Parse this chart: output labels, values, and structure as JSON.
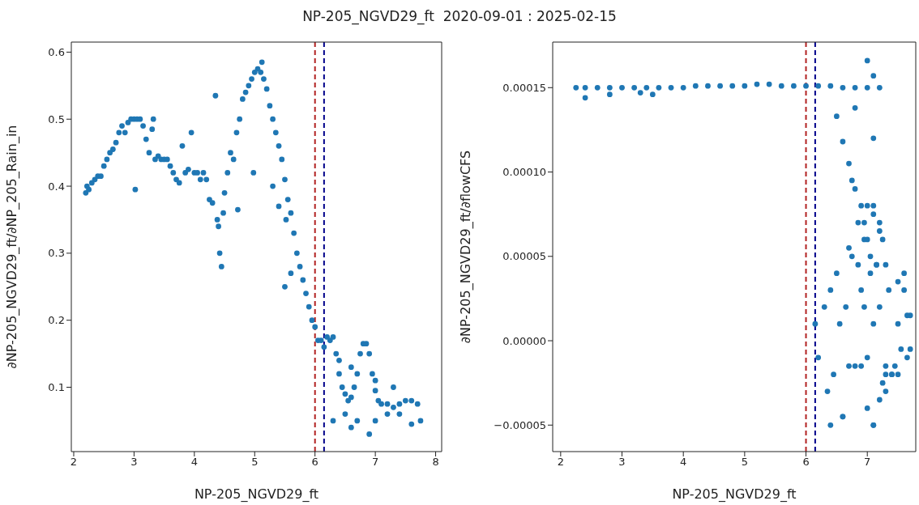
{
  "chart_data": [
    {
      "type": "scatter",
      "title": "NP-205_NGVD29_ft  2020-09-01 : 2025-02-15",
      "xlabel": "NP-205_NGVD29_ft",
      "ylabel": "∂NP-205_NGVD29_ft/∂NP_205_Rain_in",
      "marker": "circle",
      "xlim": [
        1.96,
        8.1
      ],
      "xticks": [
        2,
        3,
        4,
        5,
        6,
        7,
        8
      ],
      "ylim": [
        0.004,
        0.615
      ],
      "yticks": [
        0.1,
        0.2,
        0.3,
        0.4,
        0.5,
        0.6
      ],
      "grid": false,
      "legend": false,
      "ref_lines": [
        {
          "axis": "x",
          "value": 6.0,
          "color": "#b22222",
          "line_style": "dashed"
        },
        {
          "axis": "x",
          "value": 6.15,
          "color": "#00008b",
          "line_style": "dashed"
        }
      ],
      "color": "#1f77b4",
      "x": [
        2.2,
        2.22,
        2.25,
        2.3,
        2.35,
        2.4,
        2.45,
        2.5,
        2.55,
        2.6,
        2.65,
        2.7,
        2.75,
        2.8,
        2.85,
        2.9,
        2.95,
        3.0,
        3.05,
        3.1,
        3.02,
        3.15,
        3.2,
        3.25,
        3.3,
        3.32,
        3.35,
        3.4,
        3.45,
        3.5,
        3.55,
        3.6,
        3.65,
        3.7,
        3.75,
        3.8,
        3.85,
        3.9,
        3.95,
        4.0,
        4.05,
        4.1,
        4.15,
        4.2,
        4.25,
        4.3,
        4.35,
        4.38,
        4.4,
        4.42,
        4.45,
        4.48,
        4.5,
        4.55,
        4.6,
        4.65,
        4.7,
        4.72,
        4.75,
        4.8,
        4.85,
        4.9,
        4.95,
        4.98,
        5.0,
        5.05,
        5.1,
        5.12,
        5.15,
        5.2,
        5.25,
        5.3,
        5.35,
        5.4,
        5.45,
        5.5,
        5.52,
        5.55,
        5.6,
        5.65,
        5.7,
        5.75,
        5.8,
        5.85,
        5.9,
        5.95,
        6.0,
        6.05,
        6.1,
        6.15,
        6.2,
        6.25,
        6.3,
        6.35,
        6.4,
        6.45,
        6.5,
        6.55,
        6.6,
        6.65,
        6.7,
        6.75,
        6.8,
        6.85,
        6.9,
        6.95,
        7.0,
        7.05,
        7.1,
        7.2,
        7.3,
        7.4,
        7.5,
        7.6,
        7.7,
        7.75,
        6.3,
        6.5,
        6.6,
        6.7,
        6.9,
        7.0,
        7.2,
        7.4,
        7.6,
        6.4,
        6.6,
        7.0,
        7.3,
        5.6,
        5.5,
        5.4,
        5.3
      ],
      "values": [
        0.39,
        0.4,
        0.395,
        0.405,
        0.41,
        0.415,
        0.415,
        0.43,
        0.44,
        0.45,
        0.455,
        0.465,
        0.48,
        0.49,
        0.48,
        0.495,
        0.5,
        0.5,
        0.5,
        0.5,
        0.395,
        0.49,
        0.47,
        0.45,
        0.485,
        0.5,
        0.44,
        0.445,
        0.44,
        0.44,
        0.44,
        0.43,
        0.42,
        0.41,
        0.405,
        0.46,
        0.42,
        0.425,
        0.48,
        0.42,
        0.42,
        0.41,
        0.42,
        0.41,
        0.38,
        0.375,
        0.535,
        0.35,
        0.34,
        0.3,
        0.28,
        0.36,
        0.39,
        0.42,
        0.45,
        0.44,
        0.48,
        0.365,
        0.5,
        0.53,
        0.54,
        0.55,
        0.56,
        0.42,
        0.57,
        0.575,
        0.57,
        0.585,
        0.56,
        0.545,
        0.52,
        0.5,
        0.48,
        0.46,
        0.44,
        0.41,
        0.35,
        0.38,
        0.36,
        0.33,
        0.3,
        0.28,
        0.26,
        0.24,
        0.22,
        0.2,
        0.19,
        0.17,
        0.17,
        0.16,
        0.175,
        0.17,
        0.175,
        0.15,
        0.12,
        0.1,
        0.09,
        0.08,
        0.085,
        0.1,
        0.12,
        0.15,
        0.165,
        0.165,
        0.15,
        0.12,
        0.095,
        0.08,
        0.075,
        0.075,
        0.07,
        0.075,
        0.08,
        0.08,
        0.075,
        0.05,
        0.05,
        0.06,
        0.04,
        0.05,
        0.03,
        0.05,
        0.06,
        0.06,
        0.045,
        0.14,
        0.13,
        0.11,
        0.1,
        0.27,
        0.25,
        0.37,
        0.4
      ]
    },
    {
      "type": "scatter",
      "xlabel": "NP-205_NGVD29_ft",
      "ylabel": "∂NP-205_NGVD29_ft/∂flowCFS",
      "marker": "circle",
      "xlim": [
        1.87,
        7.79
      ],
      "xticks": [
        2,
        3,
        4,
        5,
        6,
        7
      ],
      "ylim": [
        -6.57e-05,
        0.000177
      ],
      "yticks": [
        {
          "value": -5e-05,
          "label": "−0.00005"
        },
        {
          "value": 0,
          "label": "0.00000"
        },
        {
          "value": 5e-05,
          "label": "0.00005"
        },
        {
          "value": 0.0001,
          "label": "0.00010"
        },
        {
          "value": 0.00015,
          "label": "0.00015"
        }
      ],
      "grid": false,
      "legend": false,
      "ref_lines": [
        {
          "axis": "x",
          "value": 6.0,
          "color": "#b22222",
          "line_style": "dashed"
        },
        {
          "axis": "x",
          "value": 6.15,
          "color": "#00008b",
          "line_style": "dashed"
        }
      ],
      "color": "#1f77b4",
      "x": [
        2.25,
        2.4,
        2.6,
        2.8,
        3.0,
        3.2,
        3.4,
        3.6,
        3.8,
        4.0,
        4.2,
        4.4,
        4.6,
        4.8,
        5.0,
        5.2,
        5.4,
        5.6,
        5.8,
        6.0,
        6.2,
        6.4,
        6.6,
        6.8,
        7.0,
        7.2,
        2.4,
        2.8,
        3.3,
        3.5,
        6.8,
        7.0,
        7.1,
        6.5,
        6.6,
        6.7,
        6.75,
        6.8,
        7.1,
        6.15,
        6.2,
        6.3,
        6.35,
        6.4,
        6.45,
        6.5,
        6.55,
        6.6,
        6.65,
        6.7,
        6.75,
        6.8,
        6.85,
        6.9,
        6.95,
        7.0,
        7.05,
        7.1,
        7.15,
        7.2,
        7.25,
        7.3,
        7.35,
        7.4,
        7.45,
        7.5,
        7.55,
        7.6,
        7.65,
        7.7,
        6.9,
        6.95,
        7.0,
        7.05,
        7.1,
        7.15,
        7.2,
        7.25,
        7.3,
        6.85,
        6.9,
        7.0,
        7.1,
        7.2,
        7.3,
        7.4,
        7.5,
        7.6,
        7.7,
        7.0,
        7.1,
        7.3,
        7.5,
        7.65,
        6.4,
        6.6,
        6.7,
        7.1,
        6.95,
        7.2
      ],
      "values": [
        0.00015,
        0.00015,
        0.00015,
        0.00015,
        0.00015,
        0.00015,
        0.00015,
        0.00015,
        0.00015,
        0.00015,
        0.000151,
        0.000151,
        0.000151,
        0.000151,
        0.000151,
        0.000152,
        0.000152,
        0.000151,
        0.000151,
        0.000151,
        0.000151,
        0.000151,
        0.00015,
        0.00015,
        0.00015,
        0.00015,
        0.000144,
        0.000146,
        0.000147,
        0.000146,
        0.000138,
        0.000166,
        0.000157,
        0.000133,
        0.000118,
        0.000105,
        9.5e-05,
        9e-05,
        0.00012,
        1e-05,
        -1e-05,
        2e-05,
        -3e-05,
        3e-05,
        -2e-05,
        4e-05,
        1e-05,
        -4.5e-05,
        2e-05,
        -1.5e-05,
        5e-05,
        -1.5e-05,
        7e-05,
        8e-05,
        6e-05,
        8e-05,
        4e-05,
        8e-05,
        4.5e-05,
        7e-05,
        6e-05,
        4.5e-05,
        3e-05,
        -2e-05,
        -1.5e-05,
        1e-05,
        -5e-06,
        3e-05,
        -1e-05,
        -5e-06,
        -1.5e-05,
        2e-05,
        -1e-05,
        5e-05,
        -5e-05,
        4.5e-05,
        6.5e-05,
        -2.5e-05,
        -2e-05,
        4.5e-05,
        3e-05,
        6e-05,
        7.5e-05,
        2e-05,
        -1.5e-05,
        -2e-05,
        -2e-05,
        4e-05,
        1.5e-05,
        -4e-05,
        1e-05,
        -3e-05,
        3.5e-05,
        1.5e-05,
        -5e-05,
        -4.5e-05,
        5.5e-05,
        -5e-05,
        7e-05,
        -3.5e-05
      ]
    }
  ]
}
